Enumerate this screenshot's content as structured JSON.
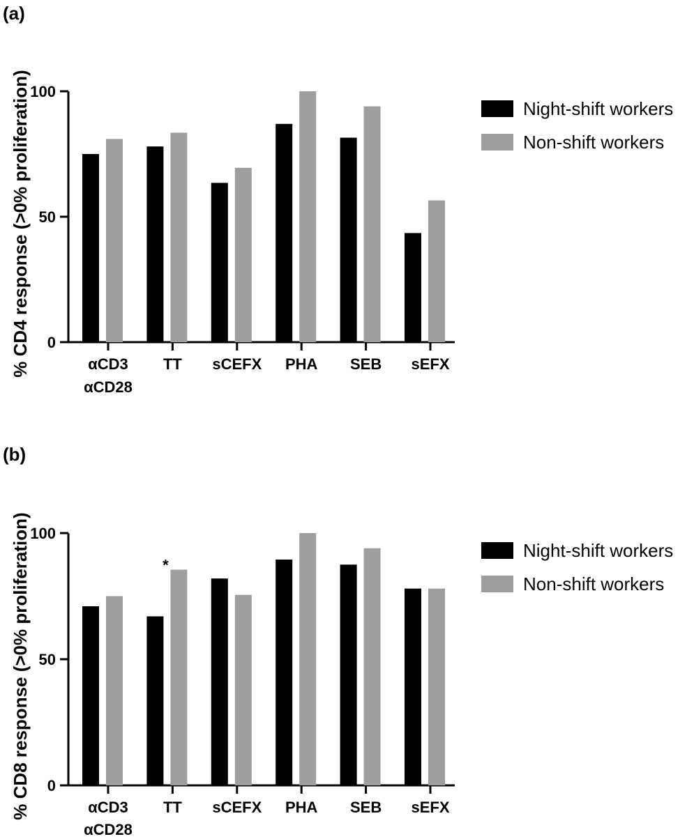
{
  "chart_data": [
    {
      "type": "bar",
      "panel_label": "(a)",
      "ylabel": "% CD4 response (>0% proliferation)",
      "ylim": [
        0,
        100
      ],
      "yticks": [
        "0",
        "50",
        "100"
      ],
      "categories": [
        [
          "αCD3",
          "αCD28"
        ],
        [
          "TT"
        ],
        [
          "sCEFX"
        ],
        [
          "PHA"
        ],
        [
          "SEB"
        ],
        [
          "sEFX"
        ]
      ],
      "series": [
        {
          "name": "Night-shift workers",
          "color": "#000000",
          "values": [
            75,
            78,
            63.5,
            87,
            81.5,
            43.5
          ]
        },
        {
          "name": "Non-shift workers",
          "color": "#9e9e9e",
          "values": [
            81,
            83.5,
            69.5,
            100,
            94,
            56.5
          ]
        }
      ],
      "annotations": [],
      "legend_position": "top-right",
      "grid": false
    },
    {
      "type": "bar",
      "panel_label": "(b)",
      "ylabel": "% CD8 response (>0% proliferation)",
      "ylim": [
        0,
        100
      ],
      "yticks": [
        "0",
        "50",
        "100"
      ],
      "categories": [
        [
          "αCD3",
          "αCD28"
        ],
        [
          "TT"
        ],
        [
          "sCEFX"
        ],
        [
          "PHA"
        ],
        [
          "SEB"
        ],
        [
          "sEFX"
        ]
      ],
      "series": [
        {
          "name": "Night-shift workers",
          "color": "#000000",
          "values": [
            71,
            67,
            82,
            89.5,
            87.5,
            78
          ]
        },
        {
          "name": "Non-shift workers",
          "color": "#9e9e9e",
          "values": [
            75,
            85.5,
            75.5,
            100,
            94,
            78
          ]
        }
      ],
      "annotations": [
        {
          "category_index": 1,
          "series_index": 1,
          "text": "*"
        }
      ],
      "legend_position": "top-right",
      "grid": false
    }
  ]
}
